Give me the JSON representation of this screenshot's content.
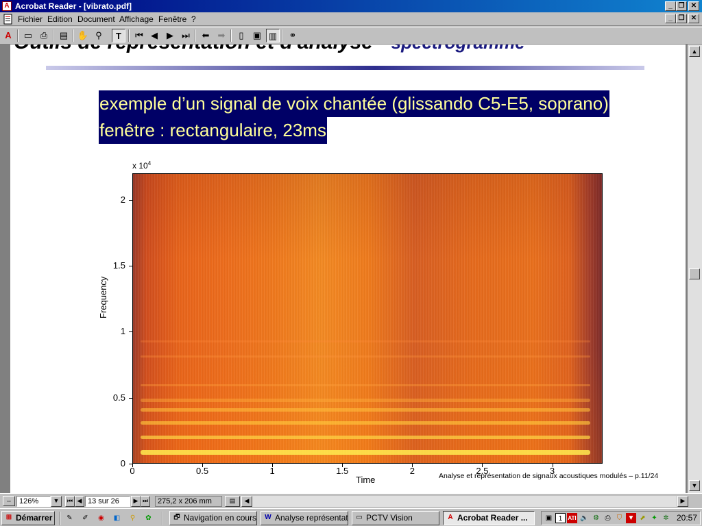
{
  "window": {
    "title": "Acrobat Reader - [vibrato.pdf]",
    "minimize_glyph": "_",
    "maximize_glyph": "❐",
    "close_glyph": "✕"
  },
  "menu": {
    "items": [
      "Fichier",
      "Edition",
      "Document",
      "Affichage",
      "Fenêtre",
      "?"
    ]
  },
  "toolbar": {
    "icons": [
      "open-icon",
      "print-icon",
      "page-thumbnails-icon",
      "hand-tool-icon",
      "zoom-tool-icon",
      "text-select-tool-icon",
      "first-page-icon",
      "previous-page-icon",
      "next-page-icon",
      "last-page-icon",
      "go-back-icon",
      "go-forward-icon",
      "actual-size-icon",
      "fit-page-icon",
      "fit-width-icon",
      "find-icon"
    ]
  },
  "slide": {
    "title_main": "Outils de représentation et d'analyse -",
    "title_sub": "spectrogramme",
    "line1": "exemple d’un signal de voix chantée (glissando C5-E5, soprano)",
    "line2": "fenêtre : rectangulaire, 23ms",
    "footer": "Analyse et représentation de signaux acoustiques modulés – p.11/24"
  },
  "chart_data": {
    "type": "heatmap",
    "xlabel": "Time",
    "ylabel": "Frequency",
    "y_multiplier": "x 10^4",
    "y_multiplier_base": "x 10",
    "y_multiplier_exp": "4",
    "x_ticks": [
      "0",
      "0.5",
      "1",
      "1.5",
      "2",
      "2.5",
      "3"
    ],
    "y_ticks": [
      "0",
      "0.5",
      "1",
      "1.5",
      "2"
    ],
    "xlim": [
      0,
      3.36
    ],
    "ylim": [
      0,
      2.2
    ]
  },
  "statusbar": {
    "zoom": "126%",
    "page": "13 sur 26",
    "page_size": "275,2 x 206 mm"
  },
  "taskbar": {
    "start_label": "Démarrer",
    "tasks": [
      {
        "label": "Navigation en cours...",
        "icon": "browser-icon"
      },
      {
        "label": "Analyse représentati...",
        "icon": "word-icon"
      },
      {
        "label": "PCTV Vision",
        "icon": "tv-icon"
      },
      {
        "label": "Acrobat Reader ...",
        "icon": "acrobat-icon",
        "active": true
      }
    ],
    "clock": "20:57"
  }
}
